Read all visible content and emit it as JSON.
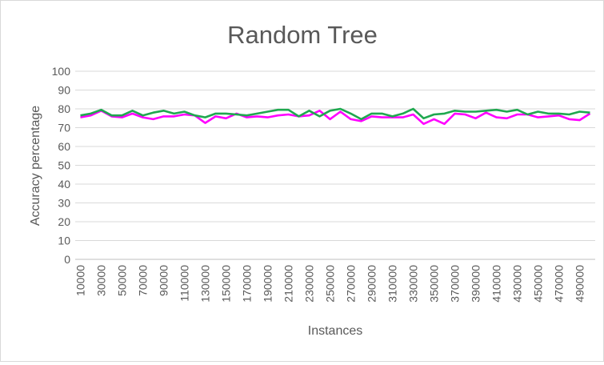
{
  "chart_data": {
    "type": "line",
    "title": "Random Tree",
    "xlabel": "Instances",
    "ylabel": "Accuracy percentage",
    "ylim": [
      0,
      100
    ],
    "y_ticks": [
      0,
      10,
      20,
      30,
      40,
      50,
      60,
      70,
      80,
      90,
      100
    ],
    "x_tick_labels": [
      "10000",
      "30000",
      "50000",
      "70000",
      "90000",
      "110000",
      "130000",
      "150000",
      "170000",
      "190000",
      "210000",
      "230000",
      "250000",
      "270000",
      "290000",
      "310000",
      "330000",
      "350000",
      "370000",
      "390000",
      "410000",
      "430000",
      "450000",
      "470000",
      "490000"
    ],
    "grid": true,
    "legend": "none",
    "x": [
      10000,
      20000,
      30000,
      40000,
      50000,
      60000,
      70000,
      80000,
      90000,
      100000,
      110000,
      120000,
      130000,
      140000,
      150000,
      160000,
      170000,
      180000,
      190000,
      200000,
      210000,
      220000,
      230000,
      240000,
      250000,
      260000,
      270000,
      280000,
      290000,
      300000,
      310000,
      320000,
      330000,
      340000,
      350000,
      360000,
      370000,
      380000,
      390000,
      400000,
      410000,
      420000,
      430000,
      440000,
      450000,
      460000,
      470000,
      480000,
      490000,
      500000
    ],
    "series": [
      {
        "color": "#ff00ff",
        "values": [
          75.5,
          76.5,
          79,
          76,
          75.5,
          77.5,
          75.5,
          74.5,
          76,
          76,
          77,
          76.5,
          72.5,
          76,
          75,
          77.5,
          75.5,
          76,
          75.5,
          76.5,
          77,
          76,
          76.5,
          79,
          74.5,
          78.5,
          74.5,
          73.5,
          76,
          75.5,
          75.5,
          75.5,
          77,
          72,
          74.5,
          72,
          77.5,
          77,
          75,
          78,
          75.5,
          75,
          77,
          77,
          75.5,
          76,
          76.5,
          74.5,
          74,
          77.5
        ]
      },
      {
        "color": "#1fa84f",
        "values": [
          76.5,
          77.5,
          79.5,
          76.5,
          76.5,
          79,
          76.5,
          78,
          79,
          77.5,
          78.5,
          76.5,
          75.5,
          77.5,
          77.5,
          77,
          76.5,
          77.5,
          78.5,
          79.5,
          79.5,
          76,
          79,
          76,
          79,
          80,
          77.5,
          74.5,
          77.5,
          77.5,
          76,
          77.5,
          80,
          75,
          77,
          77.5,
          79,
          78.5,
          78.5,
          79,
          79.5,
          78.5,
          79.5,
          77,
          78.5,
          77.5,
          77.5,
          77,
          78.5,
          78
        ]
      }
    ]
  }
}
